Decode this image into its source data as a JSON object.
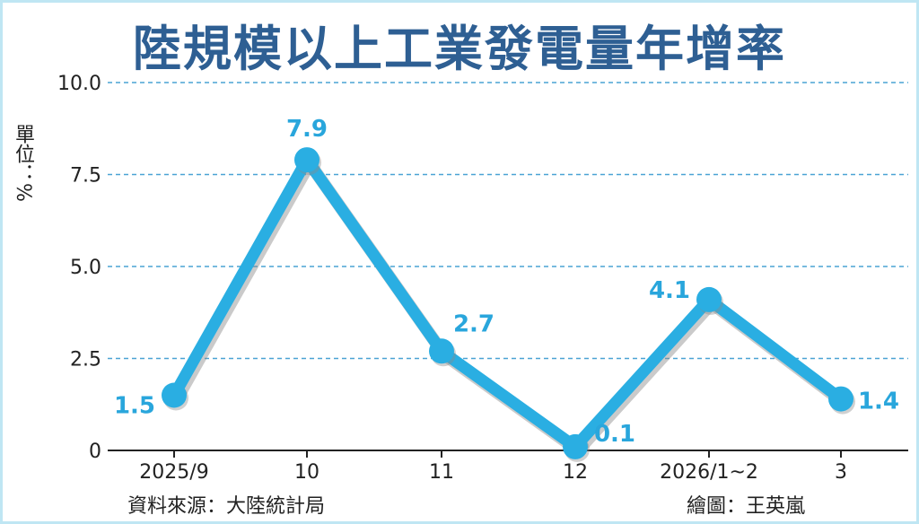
{
  "colors": {
    "line": "#2aaee2",
    "label": "#29a6dc",
    "grid": "#4aa3d4",
    "title": "#2e5f93",
    "border": "#bfe6f3"
  },
  "footer": {
    "source": "資料來源：大陸統計局",
    "credit": "繪圖：王英嵐"
  },
  "chart_data": {
    "type": "line",
    "title": "陸規模以上工業發電量年增率",
    "ylabel": "單位：%",
    "xlabel": "",
    "categories": [
      "2025/9",
      "10",
      "11",
      "12",
      "2026/1~2",
      "3"
    ],
    "series": [
      {
        "values": [
          1.5,
          7.9,
          2.7,
          0.1,
          4.1,
          1.4
        ]
      }
    ],
    "data_labels": [
      "1.5",
      "7.9",
      "2.7",
      "0.1",
      "4.1",
      "1.4"
    ],
    "yticks": [
      0,
      2.5,
      5.0,
      7.5,
      10.0
    ],
    "ytick_labels": [
      "0",
      "2.5",
      "5.0",
      "7.5",
      "10.0"
    ],
    "ylim": [
      0,
      10
    ],
    "grid": "horizontal dashed",
    "legend": "none"
  }
}
